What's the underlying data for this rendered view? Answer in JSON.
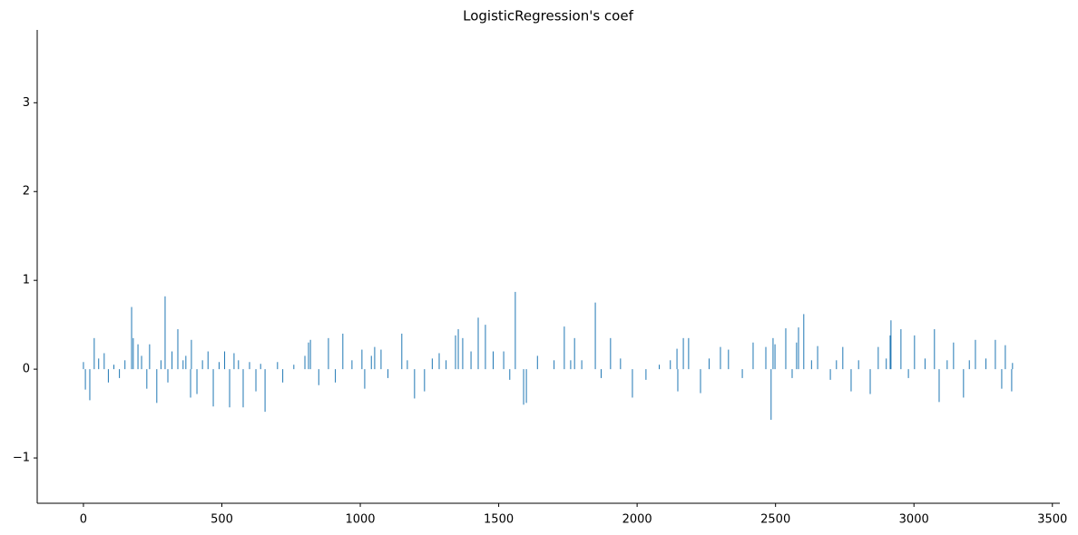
{
  "chart_data": {
    "type": "bar",
    "title": "LogisticRegression's coef",
    "color": "#1f77b4",
    "x": [
      0,
      7,
      23,
      39,
      55,
      75,
      90,
      110,
      130,
      150,
      174,
      180,
      197,
      210,
      229,
      239,
      265,
      280,
      295,
      305,
      320,
      341,
      360,
      370,
      387,
      390,
      410,
      430,
      450,
      469,
      490,
      510,
      528,
      544,
      560,
      577,
      600,
      623,
      640,
      656,
      701,
      720,
      760,
      800,
      813,
      820,
      850,
      885,
      910,
      937,
      970,
      1006,
      1016,
      1040,
      1052,
      1075,
      1100,
      1150,
      1170,
      1196,
      1232,
      1260,
      1285,
      1310,
      1344,
      1354,
      1370,
      1400,
      1426,
      1452,
      1480,
      1518,
      1540,
      1560,
      1590,
      1600,
      1640,
      1700,
      1737,
      1760,
      1774,
      1800,
      1849,
      1870,
      1904,
      1940,
      1983,
      2032,
      2080,
      2120,
      2144,
      2147,
      2167,
      2186,
      2229,
      2260,
      2301,
      2330,
      2380,
      2419,
      2465,
      2484,
      2491,
      2498,
      2537,
      2560,
      2576,
      2583,
      2602,
      2630,
      2652,
      2698,
      2720,
      2743,
      2773,
      2800,
      2842,
      2871,
      2900,
      2914,
      2917,
      2953,
      2980,
      3002,
      3040,
      3074,
      3091,
      3120,
      3143,
      3179,
      3200,
      3222,
      3260,
      3294,
      3317,
      3330,
      3353,
      3356
    ],
    "values": [
      0.08,
      -0.23,
      -0.35,
      0.35,
      0.12,
      0.18,
      -0.15,
      0.05,
      -0.1,
      0.1,
      0.7,
      0.35,
      0.28,
      0.15,
      -0.22,
      0.28,
      -0.38,
      0.1,
      0.82,
      -0.15,
      0.2,
      0.45,
      0.1,
      0.15,
      -0.32,
      0.33,
      -0.28,
      0.1,
      0.2,
      -0.42,
      0.08,
      0.2,
      -0.43,
      0.18,
      0.1,
      -0.43,
      0.08,
      -0.25,
      0.06,
      -0.48,
      0.08,
      -0.15,
      0.05,
      0.15,
      0.3,
      0.33,
      -0.18,
      0.35,
      -0.15,
      0.4,
      0.1,
      0.22,
      -0.22,
      0.15,
      0.25,
      0.22,
      -0.1,
      0.4,
      0.1,
      -0.33,
      -0.25,
      0.12,
      0.18,
      0.1,
      0.38,
      0.45,
      0.35,
      0.2,
      0.58,
      0.5,
      0.2,
      0.2,
      -0.12,
      0.87,
      -0.4,
      -0.38,
      0.15,
      0.1,
      0.48,
      0.1,
      0.35,
      0.1,
      0.75,
      -0.1,
      0.35,
      0.12,
      -0.32,
      -0.12,
      0.05,
      0.1,
      0.23,
      -0.25,
      0.35,
      0.35,
      -0.27,
      0.12,
      0.25,
      0.22,
      -0.1,
      0.3,
      0.25,
      -0.57,
      0.35,
      0.28,
      0.46,
      -0.1,
      0.3,
      0.47,
      0.62,
      0.1,
      0.26,
      -0.12,
      0.1,
      0.25,
      -0.25,
      0.1,
      -0.28,
      0.25,
      0.12,
      0.38,
      0.55,
      0.45,
      -0.1,
      0.38,
      0.12,
      0.45,
      -0.37,
      0.1,
      0.3,
      -0.32,
      0.1,
      0.33,
      0.12,
      0.33,
      -0.22,
      0.27,
      -0.25,
      0.07
    ],
    "xlim": [
      -167,
      3527
    ],
    "ylim": [
      -1.51,
      3.82
    ],
    "xticks": [
      0,
      500,
      1000,
      1500,
      2000,
      2500,
      3000,
      3500
    ],
    "yticks": [
      {
        "value": -1,
        "label": "−1"
      },
      0,
      1,
      2,
      3
    ]
  }
}
